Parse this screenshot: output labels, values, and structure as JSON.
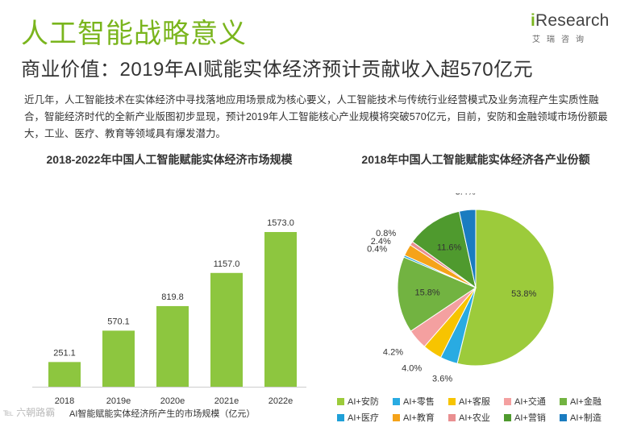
{
  "page": {
    "title": "人工智能战略意义",
    "subtitle": "商业价值：2019年AI赋能实体经济预计贡献收入超570亿元",
    "intro": "近几年，人工智能技术在实体经济中寻找落地应用场景成为核心要义，人工智能技术与传统行业经营模式及业务流程产生实质性融合，智能经济时代的全新产业版图初步显现，预计2019年人工智能核心产业规模将突破570亿元，目前，安防和金融领域市场份额最大，工业、医疗、教育等领域具有爆发潜力。"
  },
  "logo": {
    "i": "i",
    "rest": "Research",
    "sub": "艾瑞咨询"
  },
  "watermark": "℡ 六朝路霸",
  "colors": {
    "accent": "#7ab51d",
    "bar": "#8dc63f"
  },
  "chart_data": [
    {
      "type": "bar",
      "title": "2018-2022年中国人工智能赋能实体经济市场规模",
      "categories": [
        "2018",
        "2019e",
        "2020e",
        "2021e",
        "2022e"
      ],
      "values": [
        251.1,
        570.1,
        819.8,
        1157.0,
        1573.0
      ],
      "value_labels": [
        "251.1",
        "570.1",
        "819.8",
        "1157.0",
        "1573.0"
      ],
      "ylim": [
        0,
        1573.0
      ],
      "xlabel": "",
      "ylabel": "",
      "caption": "AI智能赋能实体经济所产生的市场规模（亿元）",
      "grid": false
    },
    {
      "type": "pie",
      "title": "2018年中国人工智能赋能实体经济各产业份额",
      "slices": [
        {
          "name": "AI+安防",
          "value": 53.8,
          "label": "53.8%",
          "color": "#9ccb3b"
        },
        {
          "name": "AI+零售",
          "value": 3.6,
          "label": "3.6%",
          "color": "#29abe2"
        },
        {
          "name": "AI+客服",
          "value": 4.0,
          "label": "4.0%",
          "color": "#f7c400"
        },
        {
          "name": "AI+交通",
          "value": 4.2,
          "label": "4.2%",
          "color": "#f4a0a0"
        },
        {
          "name": "AI+金融",
          "value": 15.8,
          "label": "15.8%",
          "color": "#72b341"
        },
        {
          "name": "AI+医疗",
          "value": 0.4,
          "label": "0.4%",
          "color": "#1fa0d8"
        },
        {
          "name": "AI+教育",
          "value": 2.4,
          "label": "2.4%",
          "color": "#f5a31a"
        },
        {
          "name": "AI+农业",
          "value": 0.8,
          "label": "0.8%",
          "color": "#e98f91"
        },
        {
          "name": "AI+营销",
          "value": 11.6,
          "label": "11.6%",
          "color": "#4f9a2e"
        },
        {
          "name": "AI+制造",
          "value": 3.4,
          "label": "3.4%",
          "color": "#1a7cc0"
        }
      ],
      "legend_position": "bottom"
    }
  ]
}
